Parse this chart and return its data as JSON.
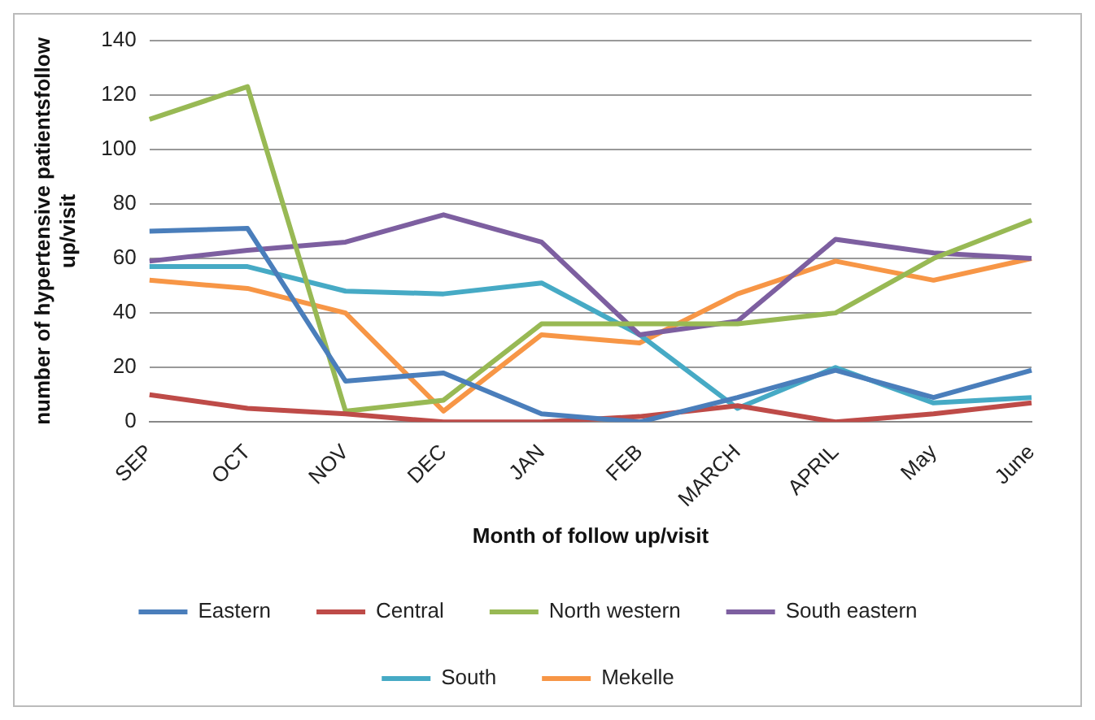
{
  "chart_data": {
    "type": "line",
    "xlabel": "Month of follow up/visit",
    "ylabel": "number of hypertensive patientsfollow up/visit",
    "categories": [
      "SEP",
      "OCT",
      "NOV",
      "DEC",
      "JAN",
      "FEB",
      "MARCH",
      "APRIL",
      "May",
      "June"
    ],
    "ylim": [
      0,
      140
    ],
    "yticks": [
      0,
      20,
      40,
      60,
      80,
      100,
      120,
      140
    ],
    "grid": "y",
    "legend": "bottom",
    "marker": "none",
    "line_style": "solid",
    "series": [
      {
        "name": "Eastern",
        "color": "#4a7ebb",
        "values": [
          70,
          71,
          15,
          18,
          3,
          0,
          9,
          19,
          9,
          19
        ]
      },
      {
        "name": "Central",
        "color": "#be4b48",
        "values": [
          10,
          5,
          3,
          0,
          0,
          2,
          6,
          0,
          3,
          7
        ]
      },
      {
        "name": "North western",
        "color": "#98b954",
        "values": [
          111,
          123,
          4,
          8,
          36,
          36,
          36,
          40,
          60,
          74
        ]
      },
      {
        "name": "South eastern",
        "color": "#7d5fa0",
        "values": [
          59,
          63,
          66,
          76,
          66,
          32,
          37,
          67,
          62,
          60
        ]
      },
      {
        "name": "South",
        "color": "#46aac5",
        "values": [
          57,
          57,
          48,
          47,
          51,
          32,
          5,
          20,
          7,
          9
        ]
      },
      {
        "name": "Mekelle",
        "color": "#f79646",
        "values": [
          52,
          49,
          40,
          4,
          32,
          29,
          47,
          59,
          52,
          60
        ]
      }
    ]
  }
}
